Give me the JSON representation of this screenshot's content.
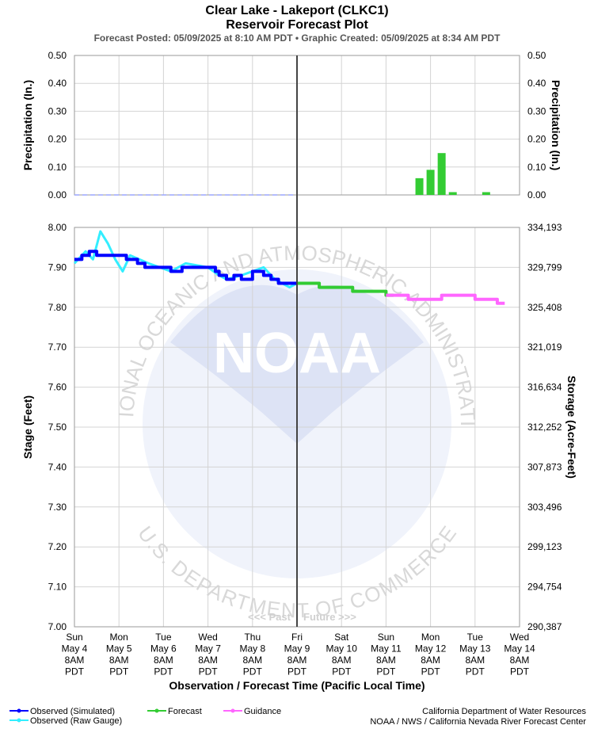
{
  "chart_data": [
    {
      "type": "bar",
      "panel": "precipitation",
      "ylabel_left": "Precipitation (In.)",
      "ylabel_right": "Precipitation (In.)",
      "ylim": [
        0,
        0.5
      ],
      "yticks": [
        "0.50",
        "0.40",
        "0.30",
        "0.20",
        "0.10",
        "0.00"
      ],
      "series": [
        {
          "name": "Forecast",
          "x": [
            "May 12 02:00",
            "May 12 08:00",
            "May 12 14:00",
            "May 12 20:00",
            "May 13 14:00"
          ],
          "values": [
            0.06,
            0.09,
            0.15,
            0.01,
            0.01
          ]
        }
      ]
    },
    {
      "type": "line",
      "panel": "stage",
      "title": "Clear Lake - Lakeport (CLKC1)",
      "subtitle": "Reservoir Forecast Plot",
      "ylabel_left": "Stage (Feet)",
      "ylabel_right": "Storage (Acre-Feet)",
      "xlabel": "Observation / Forecast Time (Pacific Local Time)",
      "ylim": [
        7.0,
        8.0
      ],
      "yticks": [
        "8.00",
        "7.90",
        "7.80",
        "7.70",
        "7.60",
        "7.50",
        "7.40",
        "7.30",
        "7.20",
        "7.10",
        "7.00"
      ],
      "yticks_right": [
        "334,193",
        "329,799",
        "325,408",
        "321,019",
        "316,634",
        "312,252",
        "307,873",
        "303,496",
        "299,123",
        "294,754",
        "290,387"
      ],
      "xticks": [
        {
          "day": "Sun",
          "date": "May 4",
          "time": "8AM",
          "tz": "PDT"
        },
        {
          "day": "Mon",
          "date": "May 5",
          "time": "8AM",
          "tz": "PDT"
        },
        {
          "day": "Tue",
          "date": "May 6",
          "time": "8AM",
          "tz": "PDT"
        },
        {
          "day": "Wed",
          "date": "May 7",
          "time": "8AM",
          "tz": "PDT"
        },
        {
          "day": "Thu",
          "date": "May 8",
          "time": "8AM",
          "tz": "PDT"
        },
        {
          "day": "Fri",
          "date": "May 9",
          "time": "8AM",
          "tz": "PDT"
        },
        {
          "day": "Sat",
          "date": "May 10",
          "time": "8AM",
          "tz": "PDT"
        },
        {
          "day": "Sun",
          "date": "May 11",
          "time": "8AM",
          "tz": "PDT"
        },
        {
          "day": "Mon",
          "date": "May 12",
          "time": "8AM",
          "tz": "PDT"
        },
        {
          "day": "Tue",
          "date": "May 13",
          "time": "8AM",
          "tz": "PDT"
        },
        {
          "day": "Wed",
          "date": "May 14",
          "time": "8AM",
          "tz": "PDT"
        }
      ],
      "series": [
        {
          "name": "Observed (Simulated)",
          "color": "#0000ff",
          "points": [
            [
              "May 4 08:00",
              7.92
            ],
            [
              "May 4 12:00",
              7.93
            ],
            [
              "May 4 16:00",
              7.94
            ],
            [
              "May 4 20:00",
              7.93
            ],
            [
              "May 5 08:00",
              7.93
            ],
            [
              "May 5 12:00",
              7.92
            ],
            [
              "May 5 18:00",
              7.91
            ],
            [
              "May 5 22:00",
              7.9
            ],
            [
              "May 6 12:00",
              7.89
            ],
            [
              "May 6 18:00",
              7.9
            ],
            [
              "May 7 12:00",
              7.89
            ],
            [
              "May 7 14:00",
              7.88
            ],
            [
              "May 7 18:00",
              7.87
            ],
            [
              "May 7 22:00",
              7.88
            ],
            [
              "May 8 02:00",
              7.87
            ],
            [
              "May 8 08:00",
              7.89
            ],
            [
              "May 8 14:00",
              7.88
            ],
            [
              "May 8 18:00",
              7.87
            ],
            [
              "May 8 22:00",
              7.86
            ],
            [
              "May 9 08:00",
              7.86
            ]
          ]
        },
        {
          "name": "Observed (Raw Gauge)",
          "color": "#33eeff",
          "points": [
            [
              "May 4 08:00",
              7.91
            ],
            [
              "May 4 14:00",
              7.94
            ],
            [
              "May 4 18:00",
              7.92
            ],
            [
              "May 4 22:00",
              7.99
            ],
            [
              "May 5 02:00",
              7.96
            ],
            [
              "May 5 06:00",
              7.92
            ],
            [
              "May 5 10:00",
              7.89
            ],
            [
              "May 5 14:00",
              7.93
            ],
            [
              "May 6 00:00",
              7.91
            ],
            [
              "May 6 12:00",
              7.89
            ],
            [
              "May 6 20:00",
              7.91
            ],
            [
              "May 7 08:00",
              7.9
            ],
            [
              "May 7 14:00",
              7.88
            ],
            [
              "May 7 18:00",
              7.87
            ],
            [
              "May 8 02:00",
              7.88
            ],
            [
              "May 8 08:00",
              7.89
            ],
            [
              "May 8 14:00",
              7.9
            ],
            [
              "May 8 20:00",
              7.87
            ],
            [
              "May 9 04:00",
              7.85
            ],
            [
              "May 9 08:00",
              7.86
            ]
          ]
        },
        {
          "name": "Forecast",
          "color": "#33cc33",
          "points": [
            [
              "May 9 08:00",
              7.86
            ],
            [
              "May 9 20:00",
              7.85
            ],
            [
              "May 10 14:00",
              7.84
            ],
            [
              "May 11 08:00",
              7.83
            ],
            [
              "May 11 12:00",
              7.83
            ]
          ]
        },
        {
          "name": "Guidance",
          "color": "#ff66ff",
          "points": [
            [
              "May 11 08:00",
              7.83
            ],
            [
              "May 11 20:00",
              7.82
            ],
            [
              "May 12 08:00",
              7.82
            ],
            [
              "May 12 14:00",
              7.83
            ],
            [
              "May 13 08:00",
              7.82
            ],
            [
              "May 13 20:00",
              7.81
            ],
            [
              "May 14 00:00",
              7.81
            ]
          ]
        }
      ],
      "annotations": [
        "<<< Past",
        "Future >>>"
      ]
    }
  ],
  "header": {
    "title": "Clear Lake - Lakeport (CLKC1)",
    "subtitle": "Reservoir Forecast Plot",
    "posted": "Forecast Posted: 05/09/2025 at 8:10 AM PDT  •  Graphic Created: 05/09/2025 at 8:34 AM PDT"
  },
  "legend": [
    {
      "label": "Observed (Simulated)",
      "color": "#0000ff"
    },
    {
      "label": "Observed (Raw Gauge)",
      "color": "#33eeff"
    },
    {
      "label": "Forecast",
      "color": "#33cc33"
    },
    {
      "label": "Guidance",
      "color": "#ff66ff"
    }
  ],
  "credits": {
    "line1": "California Department of Water Resources",
    "line2": "NOAA / NWS / California Nevada River Forecast Center"
  },
  "watermark": {
    "logo_text": "NOAA",
    "ring_top": "NATIONAL OCEANIC AND ATMOSPHERIC ADMINISTRATION",
    "ring_bottom": "U.S. DEPARTMENT OF COMMERCE"
  },
  "pastfuture": {
    "past": "<<< Past",
    "future": "Future >>>"
  }
}
